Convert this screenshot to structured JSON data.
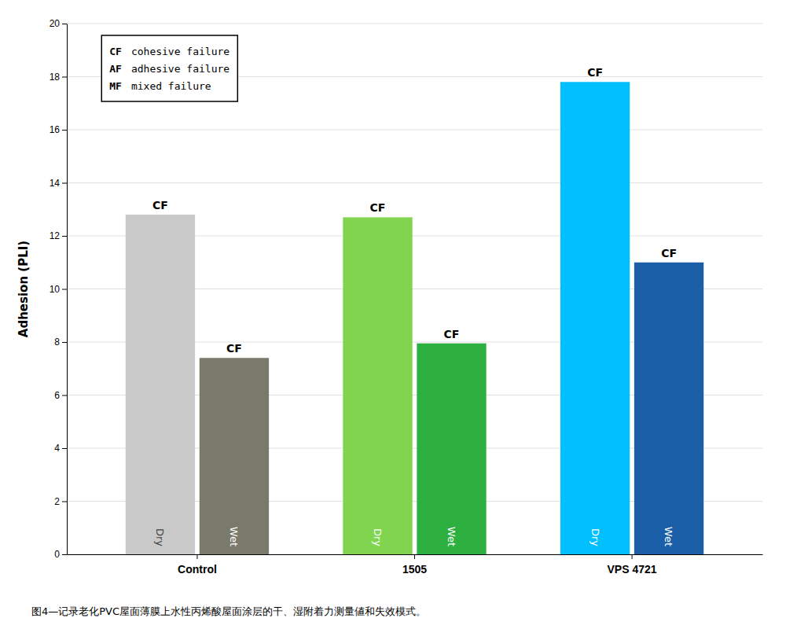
{
  "chart_data": {
    "type": "bar",
    "categories": [
      "Control",
      "1505",
      "VPS 4721"
    ],
    "series": [
      {
        "name": "Dry",
        "values": [
          12.8,
          12.7,
          17.8
        ],
        "colors": [
          "#C9C9C9",
          "#80D44E",
          "#00BFFF"
        ],
        "failure": [
          "CF",
          "CF",
          "CF"
        ]
      },
      {
        "name": "Wet",
        "values": [
          7.4,
          7.95,
          11.0
        ],
        "colors": [
          "#7A7A6A",
          "#2DB040",
          "#1A5FA8"
        ],
        "failure": [
          "CF",
          "CF",
          "CF"
        ]
      }
    ],
    "y_label": "Adhesion (PLI)",
    "ylim": [
      0,
      20
    ],
    "yticks": [
      0,
      2,
      4,
      6,
      8,
      10,
      12,
      14,
      16,
      18,
      20
    ],
    "grid": true,
    "annotations": [
      {
        "label": "CF",
        "text": "cohesive failure"
      },
      {
        "label": "AF",
        "text": "adhesive failure"
      },
      {
        "label": "MF",
        "text": "mixed failure"
      }
    ],
    "caption": "图4—记录老化PVC屋面薄膜上水性丙烯酸屋面涂层的干、湿附着力测量値和失效模式。"
  }
}
